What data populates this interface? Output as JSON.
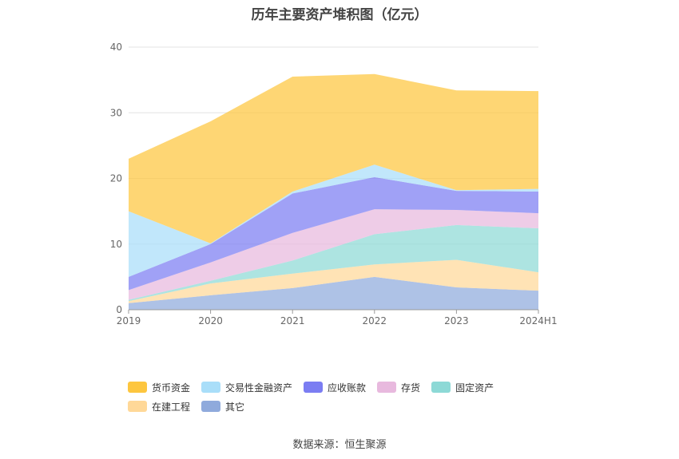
{
  "chart_data": {
    "type": "area",
    "stacked": true,
    "title": "历年主要资产堆积图（亿元）",
    "categories": [
      "2019",
      "2020",
      "2021",
      "2022",
      "2023",
      "2024H1"
    ],
    "ylim": [
      0,
      40
    ],
    "yticks": [
      0,
      10,
      20,
      30,
      40
    ],
    "grid": true,
    "legend_position": "bottom",
    "series": [
      {
        "name": "其它",
        "color": "#8faadc",
        "values": [
          1.0,
          2.2,
          3.3,
          5.0,
          3.4,
          2.9
        ]
      },
      {
        "name": "在建工程",
        "color": "#ffd898",
        "values": [
          0.3,
          1.8,
          2.2,
          1.9,
          4.2,
          2.8
        ]
      },
      {
        "name": "固定资产",
        "color": "#8dd9d6",
        "values": [
          0.2,
          0.4,
          2.0,
          4.6,
          5.3,
          6.7
        ]
      },
      {
        "name": "存货",
        "color": "#e8b9de",
        "values": [
          1.5,
          2.8,
          4.2,
          3.8,
          2.3,
          2.3
        ]
      },
      {
        "name": "应收账款",
        "color": "#7b7df2",
        "values": [
          2.0,
          2.8,
          6.0,
          4.9,
          2.9,
          3.3
        ]
      },
      {
        "name": "交易性金融资产",
        "color": "#a9def9",
        "values": [
          10.0,
          0.1,
          0.3,
          1.9,
          0.1,
          0.4
        ]
      },
      {
        "name": "货币资金",
        "color": "#fdc63f",
        "values": [
          8.0,
          18.6,
          17.5,
          13.8,
          15.2,
          14.9
        ]
      }
    ],
    "legend_order": [
      "货币资金",
      "交易性金融资产",
      "应收账款",
      "存货",
      "固定资产",
      "在建工程",
      "其它"
    ]
  },
  "source_text": "数据来源：恒生聚源"
}
